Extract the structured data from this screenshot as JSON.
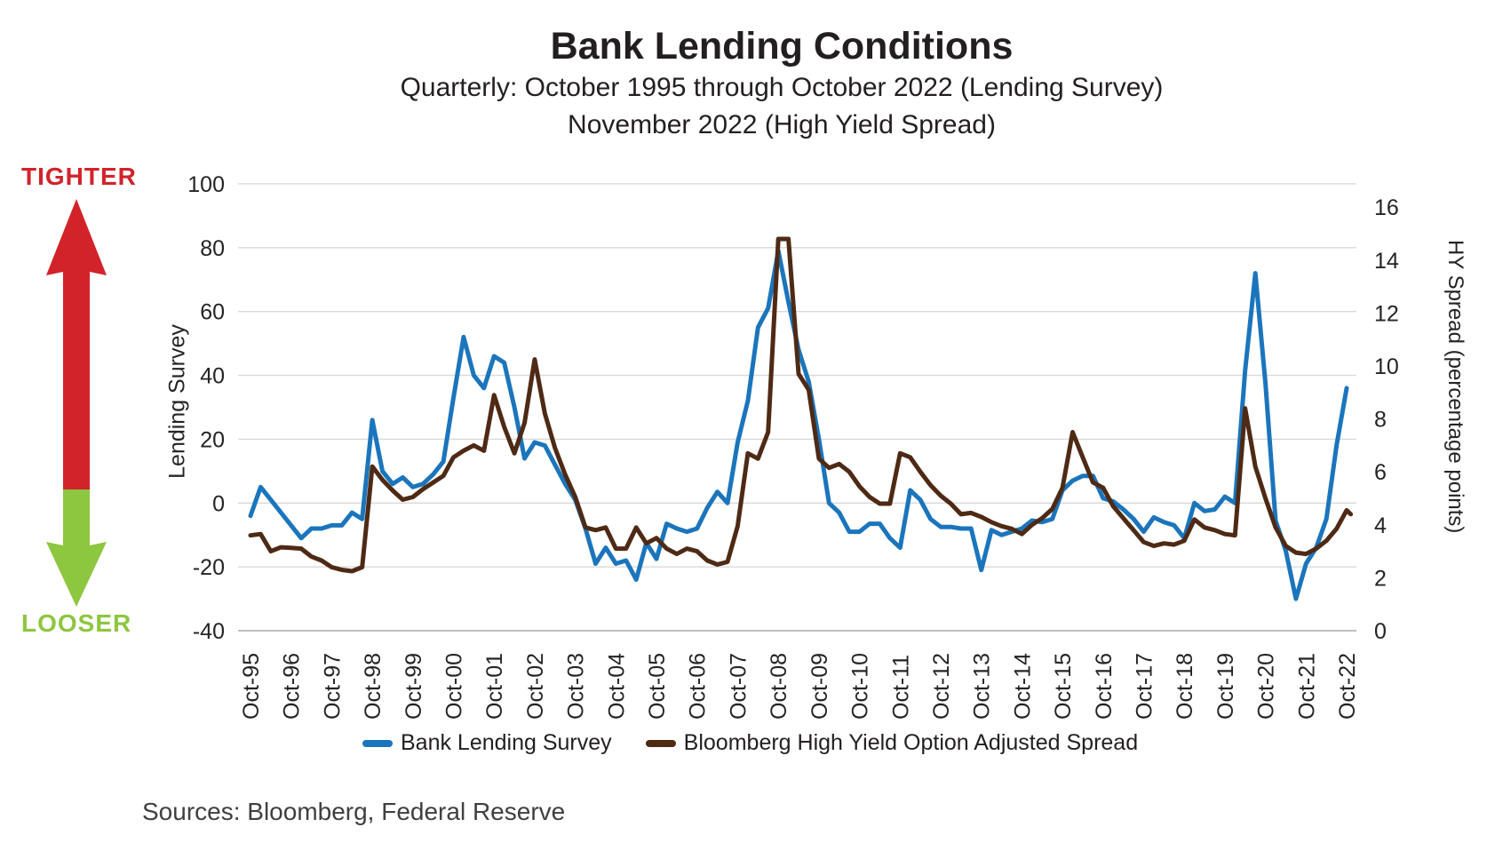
{
  "title": "Bank Lending Conditions",
  "subtitle_line1": "Quarterly: October 1995 through October 2022 (Lending Survey)",
  "subtitle_line2": "November 2022 (High Yield Spread)",
  "annotations": {
    "top": "TIGHTER",
    "bottom": "LOOSER"
  },
  "sources": "Sources: Bloomberg, Federal Reserve",
  "colors": {
    "lending_survey_blue": "#1B75BC",
    "hy_spread_brown": "#4E2A15",
    "tighter_red": "#D2232A",
    "looser_green": "#8DC63F",
    "gridline": "#D9D9D9",
    "axis_line": "#BFBFBF",
    "text": "#262324"
  },
  "chart_data": {
    "type": "line",
    "title": "Bank Lending Conditions",
    "frequency": "quarterly",
    "grid": true,
    "legend_position": "bottom",
    "x_tick_labels": [
      "Oct-95",
      "Oct-96",
      "Oct-97",
      "Oct-98",
      "Oct-99",
      "Oct-00",
      "Oct-01",
      "Oct-02",
      "Oct-03",
      "Oct-04",
      "Oct-05",
      "Oct-06",
      "Oct-07",
      "Oct-08",
      "Oct-09",
      "Oct-10",
      "Oct-11",
      "Oct-12",
      "Oct-13",
      "Oct-14",
      "Oct-15",
      "Oct-16",
      "Oct-17",
      "Oct-18",
      "Oct-19",
      "Oct-20",
      "Oct-21",
      "Oct-22"
    ],
    "left_axis": {
      "label": "Lending Survey",
      "ticks": [
        100,
        80,
        60,
        40,
        20,
        0,
        -20,
        -40
      ],
      "range": [
        -40,
        100
      ]
    },
    "right_axis": {
      "label": "HY Spread (percentage points)",
      "ticks": [
        0,
        2,
        4,
        6,
        8,
        10,
        12,
        14,
        16
      ],
      "range": [
        0,
        16
      ]
    },
    "series": [
      {
        "name": "Bank Lending Survey",
        "axis": "left",
        "color": "#1B75BC",
        "start": "Oct-95",
        "values": [
          -4,
          5,
          1,
          -3,
          -7,
          -11,
          -8,
          -8,
          -7,
          -7,
          -3,
          -5,
          26,
          10,
          6,
          8,
          5,
          6,
          9,
          13,
          33,
          52,
          40,
          36,
          46,
          44,
          30,
          14,
          19,
          18,
          12,
          6,
          1,
          -8,
          -19,
          -14,
          -19,
          -18,
          -24,
          -12.5,
          -17.5,
          -6.5,
          -8,
          -9,
          -8,
          -1.5,
          3.5,
          0,
          19,
          32,
          55,
          61,
          79,
          63,
          48,
          38,
          20,
          0,
          -3,
          -9,
          -9,
          -6.5,
          -6.5,
          -11,
          -14,
          4,
          1,
          -5,
          -7.5,
          -7.5,
          -8,
          -8,
          -21,
          -8.5,
          -10,
          -9,
          -8,
          -5.5,
          -6,
          -5,
          4,
          7,
          8.5,
          8.5,
          1.5,
          0.5,
          -2,
          -5,
          -9,
          -4.5,
          -6,
          -7,
          -11,
          0,
          -2.5,
          -2,
          2,
          0,
          41.5,
          72,
          37.5,
          -5.5,
          -15,
          -30,
          -19,
          -14,
          -5,
          18,
          36
        ]
      },
      {
        "name": "Bloomberg High Yield Option Adjusted Spread",
        "axis": "right",
        "color": "#4E2A15",
        "start": "Oct-95",
        "end": "Nov-22",
        "values": [
          3.6,
          3.65,
          3.0,
          3.15,
          3.13,
          3.1,
          2.8,
          2.65,
          2.4,
          2.3,
          2.25,
          2.4,
          6.2,
          5.7,
          5.3,
          4.95,
          5.05,
          5.35,
          5.6,
          5.85,
          6.55,
          6.8,
          7.0,
          6.8,
          8.9,
          7.7,
          6.7,
          7.85,
          10.25,
          8.2,
          6.9,
          5.9,
          5.05,
          3.9,
          3.8,
          3.9,
          3.1,
          3.1,
          3.9,
          3.3,
          3.5,
          3.1,
          2.9,
          3.1,
          3.0,
          2.65,
          2.5,
          2.6,
          3.95,
          6.7,
          6.5,
          7.5,
          14.8,
          14.8,
          9.7,
          9.1,
          6.5,
          6.15,
          6.3,
          6.0,
          5.45,
          5.05,
          4.8,
          4.8,
          6.7,
          6.55,
          6.0,
          5.5,
          5.1,
          4.8,
          4.4,
          4.45,
          4.3,
          4.1,
          3.95,
          3.85,
          3.65,
          4.0,
          4.25,
          4.6,
          5.4,
          7.5,
          6.55,
          5.6,
          5.4,
          4.7,
          4.25,
          3.8,
          3.35,
          3.2,
          3.3,
          3.25,
          3.4,
          4.2,
          3.9,
          3.8,
          3.65,
          3.6,
          8.4,
          6.2,
          5.0,
          3.9,
          3.2,
          2.95,
          2.9,
          3.1,
          3.4,
          3.85,
          4.55,
          4.4
        ]
      }
    ]
  }
}
